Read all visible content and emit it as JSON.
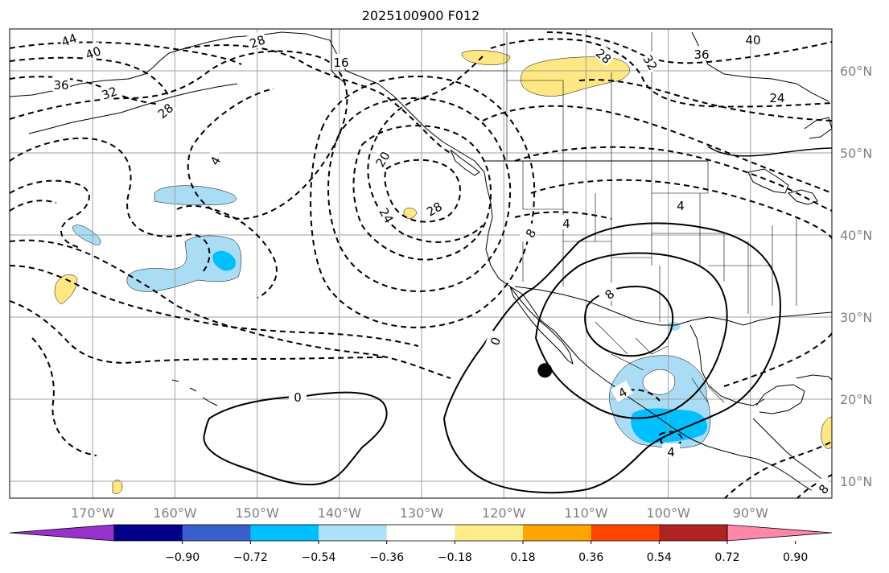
{
  "title": "2025100900 F012",
  "map": {
    "lon_ticks": [
      {
        "value": -170,
        "label": "170°W"
      },
      {
        "value": -160,
        "label": "160°W"
      },
      {
        "value": -150,
        "label": "150°W"
      },
      {
        "value": -140,
        "label": "140°W"
      },
      {
        "value": -130,
        "label": "130°W"
      },
      {
        "value": -120,
        "label": "120°W"
      },
      {
        "value": -110,
        "label": "110°W"
      },
      {
        "value": -100,
        "label": "100°W"
      },
      {
        "value": -90,
        "label": "90°W"
      }
    ],
    "lat_ticks": [
      {
        "value": 60,
        "label": "60°N"
      },
      {
        "value": 50,
        "label": "50°N"
      },
      {
        "value": 40,
        "label": "40°N"
      },
      {
        "value": 30,
        "label": "30°N"
      },
      {
        "value": 20,
        "label": "20°N"
      },
      {
        "value": 10,
        "label": "10°N"
      }
    ],
    "contour_labels": [
      "44",
      "40",
      "36",
      "32",
      "28",
      "28",
      "16",
      "4",
      "20",
      "24",
      "28",
      "8",
      "4",
      "8",
      "0",
      "0",
      "4",
      "4",
      "40",
      "36",
      "32",
      "28",
      "24",
      "4",
      "8"
    ],
    "marker": {
      "lon": -115,
      "lat": 23.5,
      "color": "#000000"
    },
    "colors": {
      "land_outline": "#000000",
      "grid": "#a0a0a0",
      "contour": "#000000",
      "fill_light_blue": "#aadcf6",
      "fill_blue": "#00bfff",
      "fill_yellow": "#ffe884"
    }
  },
  "colorbar": {
    "colors": [
      "#9932cc",
      "#00008b",
      "#3a5fcd",
      "#00bfff",
      "#afe0fa",
      "#ffffff",
      "#ffec8b",
      "#ffa500",
      "#ff4500",
      "#b22222",
      "#ff88aa"
    ],
    "tick_labels": [
      "−0.90",
      "−0.72",
      "−0.54",
      "−0.36",
      "−0.18",
      "0.18",
      "0.36",
      "0.54",
      "0.72",
      "0.90"
    ]
  }
}
